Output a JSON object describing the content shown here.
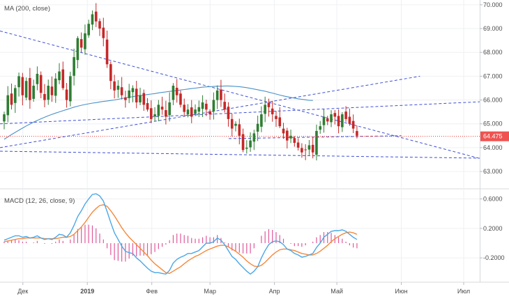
{
  "chart_data": [
    {
      "type": "candlestick",
      "indicator_label": "MA (200, close)",
      "x_tick_labels": [
        "Дек",
        "2019",
        "Фев",
        "Мар",
        "Апр",
        "Май",
        "Июн",
        "Июл"
      ],
      "y_tick_labels": [
        "70.000",
        "69.000",
        "68.000",
        "67.000",
        "66.000",
        "65.000",
        "64.000",
        "63.000"
      ],
      "ylim": [
        62.3,
        70.2
      ],
      "last_price": 64.475,
      "last_price_label": "64.475",
      "closes": [
        65.4,
        66.2,
        65.8,
        66.5,
        67.0,
        66.2,
        66.8,
        66.0,
        66.6,
        67.1,
        66.3,
        66.0,
        66.6,
        66.2,
        66.9,
        67.2,
        66.5,
        66.0,
        67.0,
        67.8,
        68.6,
        68.2,
        68.8,
        69.2,
        69.6,
        69.3,
        69.0,
        68.6,
        67.5,
        66.8,
        66.4,
        66.6,
        66.2,
        66.0,
        66.4,
        66.5,
        65.9,
        66.2,
        65.8,
        65.6,
        65.2,
        65.4,
        65.8,
        65.6,
        65.3,
        65.9,
        66.6,
        66.2,
        65.8,
        65.5,
        65.6,
        65.3,
        65.6,
        65.7,
        65.9,
        65.6,
        65.4,
        66.0,
        66.4,
        66.0,
        65.6,
        65.2,
        64.8,
        65.0,
        64.5,
        63.9,
        64.0,
        64.3,
        64.6,
        65.0,
        65.4,
        65.8,
        65.7,
        65.4,
        65.2,
        64.9,
        64.6,
        64.3,
        64.5,
        64.2,
        64.0,
        63.8,
        63.9,
        64.1,
        63.8,
        64.7,
        64.9,
        65.3,
        65.1,
        65.4,
        65.3,
        64.9,
        65.4,
        65.2,
        65.0,
        64.8,
        64.5
      ],
      "ma_200": [
        64.35,
        64.45,
        64.55,
        64.64,
        64.73,
        64.82,
        64.91,
        64.99,
        65.07,
        65.14,
        65.21,
        65.28,
        65.34,
        65.4,
        65.45,
        65.5,
        65.55,
        65.6,
        65.65,
        65.7,
        65.74,
        65.78,
        65.81,
        65.84,
        65.87,
        65.89,
        65.92,
        65.94,
        65.96,
        65.98,
        66.0,
        66.03,
        66.06,
        66.09,
        66.12,
        66.14,
        66.17,
        66.19,
        66.21,
        66.23,
        66.25,
        66.27,
        66.3,
        66.32,
        66.34,
        66.36,
        66.38,
        66.4,
        66.42,
        66.44,
        66.46,
        66.48,
        66.5,
        66.52,
        66.54,
        66.55,
        66.56,
        66.57,
        66.58,
        66.58,
        66.59,
        66.59,
        66.58,
        66.57,
        66.56,
        66.54,
        66.52,
        66.49,
        66.46,
        66.43,
        66.4,
        66.37,
        66.33,
        66.29,
        66.25,
        66.21,
        66.17,
        66.14,
        66.11,
        66.08,
        66.05,
        66.03,
        66.01,
        65.99,
        65.98
      ],
      "trendlines": [
        {
          "from": [
            "2018-11-20",
            68.9
          ],
          "to": [
            "2019-07-15",
            63.4
          ]
        },
        {
          "from": [
            "2018-11-20",
            64.0
          ],
          "to": [
            "2019-06-10",
            67.0
          ]
        },
        {
          "from": [
            "2018-11-20",
            65.0
          ],
          "to": [
            "2019-07-15",
            65.95
          ]
        },
        {
          "from": [
            "2018-11-20",
            63.85
          ],
          "to": [
            "2019-07-15",
            63.55
          ]
        },
        {
          "from": [
            "2019-03-10",
            64.38
          ],
          "to": [
            "2019-06-01",
            64.5
          ]
        }
      ]
    },
    {
      "type": "line",
      "indicator_label": "MACD (12, 26, close, 9)",
      "y_tick_labels": [
        "0.6000",
        "0.2000",
        "-0.2000"
      ],
      "ylim": [
        -0.52,
        0.68
      ],
      "series": [
        {
          "color": "#4aa7e6",
          "values": [
            0.04,
            0.06,
            0.08,
            0.1,
            0.1,
            0.08,
            0.09,
            0.07,
            0.08,
            0.1,
            0.07,
            0.05,
            0.06,
            0.05,
            0.08,
            0.12,
            0.11,
            0.08,
            0.14,
            0.24,
            0.36,
            0.44,
            0.53,
            0.6,
            0.66,
            0.67,
            0.64,
            0.57,
            0.43,
            0.28,
            0.14,
            0.05,
            -0.04,
            -0.11,
            -0.13,
            -0.14,
            -0.2,
            -0.24,
            -0.29,
            -0.34,
            -0.38,
            -0.4,
            -0.4,
            -0.41,
            -0.42,
            -0.37,
            -0.27,
            -0.22,
            -0.19,
            -0.17,
            -0.14,
            -0.14,
            -0.12,
            -0.1,
            -0.05,
            0.0,
            0.0,
            0.02,
            0.07,
            0.04,
            -0.02,
            -0.1,
            -0.18,
            -0.22,
            -0.28,
            -0.33,
            -0.38,
            -0.42,
            -0.38,
            -0.32,
            -0.2,
            -0.1,
            -0.02,
            0.02,
            0.03,
            0.02,
            -0.02,
            -0.08,
            -0.1,
            -0.14,
            -0.16,
            -0.19,
            -0.18,
            -0.16,
            -0.14,
            -0.06,
            0.0,
            0.08,
            0.12,
            0.16,
            0.17,
            0.17,
            0.18,
            0.16,
            0.12,
            0.08,
            0.05
          ]
        },
        {
          "color": "#f5893c",
          "values": [
            0.02,
            0.03,
            0.04,
            0.05,
            0.06,
            0.06,
            0.07,
            0.07,
            0.07,
            0.07,
            0.07,
            0.06,
            0.06,
            0.06,
            0.06,
            0.07,
            0.08,
            0.08,
            0.09,
            0.12,
            0.17,
            0.22,
            0.28,
            0.35,
            0.42,
            0.47,
            0.51,
            0.52,
            0.5,
            0.44,
            0.37,
            0.29,
            0.21,
            0.14,
            0.08,
            0.03,
            -0.02,
            -0.07,
            -0.12,
            -0.17,
            -0.23,
            -0.28,
            -0.32,
            -0.36,
            -0.4,
            -0.41,
            -0.38,
            -0.35,
            -0.32,
            -0.28,
            -0.24,
            -0.21,
            -0.18,
            -0.16,
            -0.13,
            -0.1,
            -0.08,
            -0.06,
            -0.04,
            -0.03,
            -0.03,
            -0.05,
            -0.08,
            -0.11,
            -0.15,
            -0.19,
            -0.24,
            -0.28,
            -0.31,
            -0.32,
            -0.3,
            -0.26,
            -0.21,
            -0.16,
            -0.12,
            -0.09,
            -0.08,
            -0.08,
            -0.09,
            -0.1,
            -0.12,
            -0.14,
            -0.15,
            -0.16,
            -0.16,
            -0.14,
            -0.11,
            -0.07,
            -0.03,
            0.02,
            0.06,
            0.09,
            0.12,
            0.14,
            0.15,
            0.14,
            0.12
          ]
        },
        {
          "color": "#e0589a",
          "type": "histogram",
          "values": [
            0.02,
            0.03,
            0.04,
            0.05,
            0.04,
            0.02,
            0.02,
            0.0,
            0.01,
            0.03,
            0.0,
            -0.01,
            0.0,
            -0.01,
            0.02,
            0.05,
            0.03,
            0.0,
            0.05,
            0.12,
            0.19,
            0.22,
            0.25,
            0.25,
            0.24,
            0.2,
            0.13,
            0.05,
            -0.07,
            -0.16,
            -0.23,
            -0.24,
            -0.25,
            -0.25,
            -0.21,
            -0.17,
            -0.18,
            -0.17,
            -0.17,
            -0.17,
            -0.15,
            -0.12,
            -0.08,
            -0.05,
            -0.02,
            0.04,
            0.11,
            0.13,
            0.13,
            0.11,
            0.1,
            0.07,
            0.06,
            0.06,
            0.08,
            0.1,
            0.08,
            0.08,
            0.11,
            0.07,
            0.01,
            -0.05,
            -0.1,
            -0.11,
            -0.13,
            -0.14,
            -0.14,
            -0.14,
            -0.07,
            0.0,
            0.1,
            0.16,
            0.19,
            0.18,
            0.15,
            0.11,
            0.06,
            0.0,
            -0.01,
            -0.04,
            -0.04,
            -0.05,
            -0.03,
            0.0,
            0.02,
            0.08,
            0.11,
            0.15,
            0.15,
            0.14,
            0.11,
            0.08,
            0.06,
            0.02,
            -0.03,
            -0.06,
            -0.07
          ]
        }
      ]
    }
  ]
}
